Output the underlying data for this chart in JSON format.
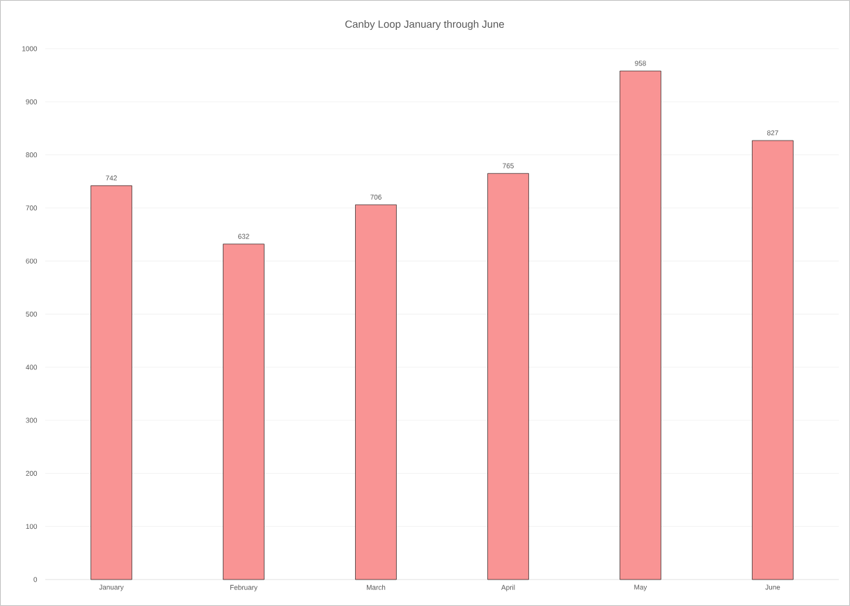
{
  "chart_data": {
    "type": "bar",
    "title": "Canby Loop January through June",
    "categories": [
      "January",
      "February",
      "March",
      "April",
      "May",
      "June"
    ],
    "values": [
      742,
      632,
      706,
      765,
      958,
      827
    ],
    "color": "#f99494",
    "ylim": [
      0,
      1000
    ],
    "yticks": [
      0,
      100,
      200,
      300,
      400,
      500,
      600,
      700,
      800,
      900,
      1000
    ],
    "grid": "y",
    "data_labels": true
  }
}
